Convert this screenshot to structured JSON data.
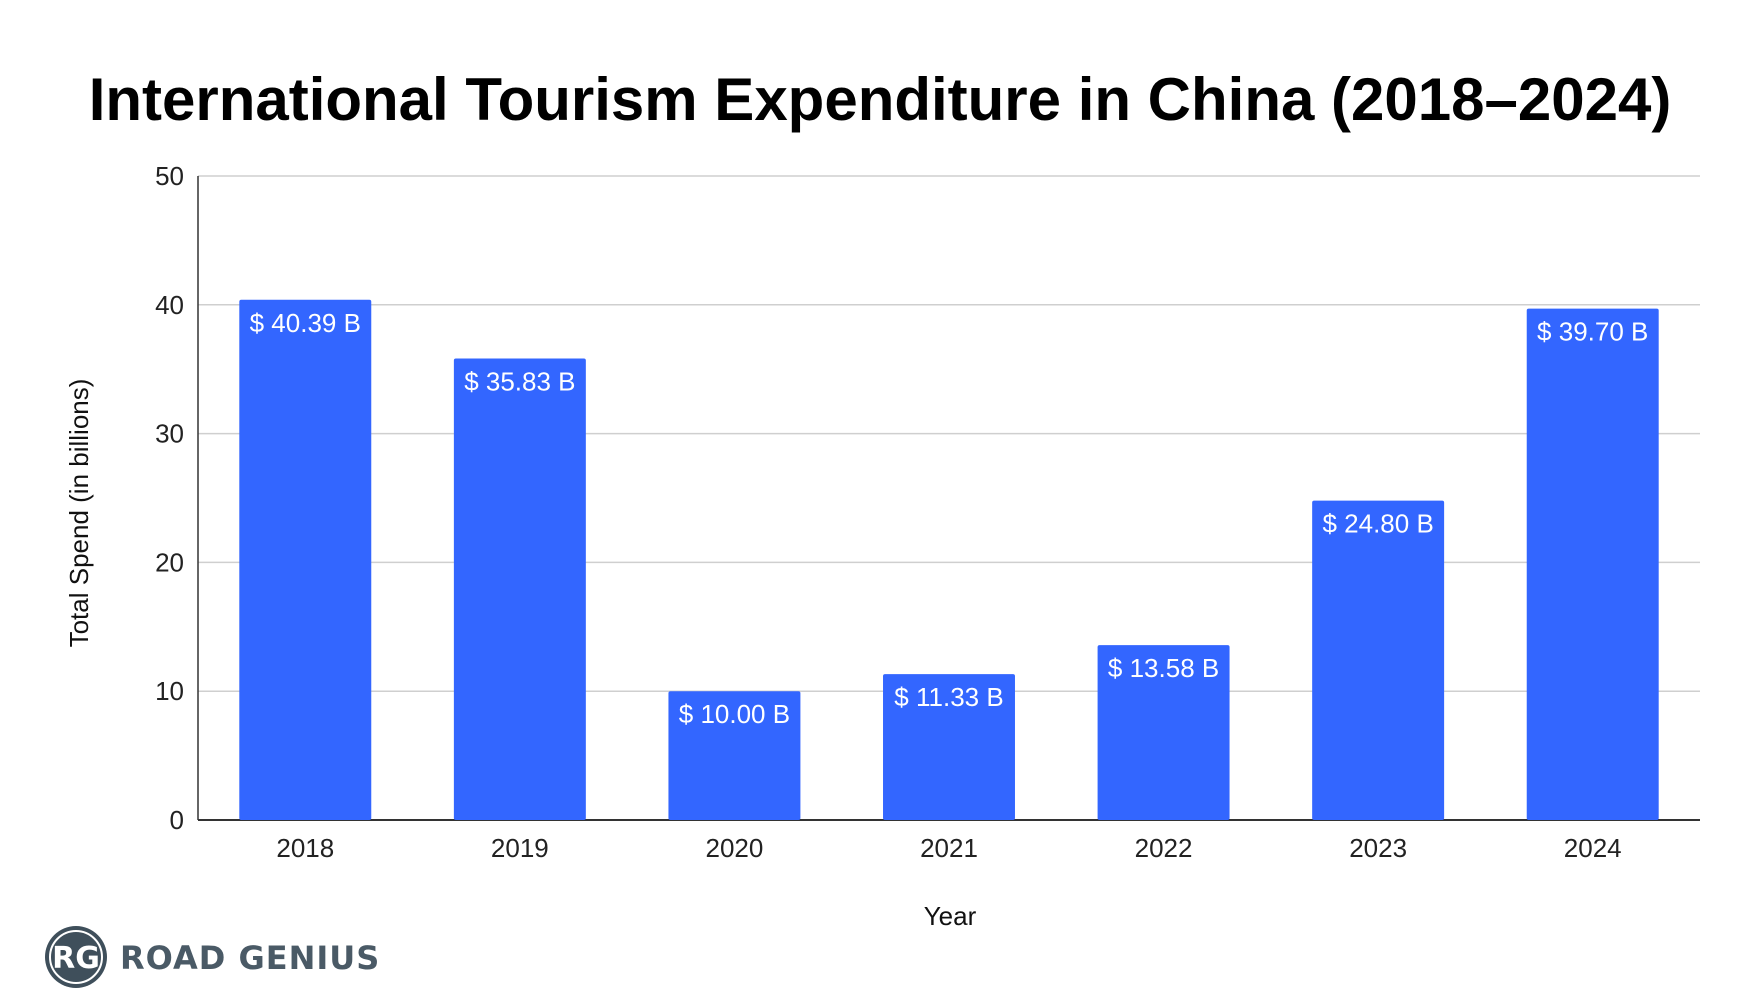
{
  "chart_data": {
    "type": "bar",
    "title": "International Tourism Expenditure in China (2018–2024)",
    "xlabel": "Year",
    "ylabel": "Total Spend (in billions)",
    "categories": [
      "2018",
      "2019",
      "2020",
      "2021",
      "2022",
      "2023",
      "2024"
    ],
    "values": [
      40.39,
      35.83,
      10.0,
      11.33,
      13.58,
      24.8,
      39.7
    ],
    "data_labels": [
      "$ 40.39 B",
      "$ 35.83 B",
      "$ 10.00 B",
      "$ 11.33 B",
      "$ 13.58 B",
      "$ 24.80 B",
      "$ 39.70 B"
    ],
    "ylim": [
      0,
      50
    ],
    "yticks": [
      0,
      10,
      20,
      30,
      40,
      50
    ],
    "grid": true,
    "legend": "none",
    "bar_color": "#3366ff"
  },
  "branding": {
    "logo_badge": "RG",
    "logo_text": "ROAD GENIUS",
    "logo_color": "#3f4f5b"
  }
}
